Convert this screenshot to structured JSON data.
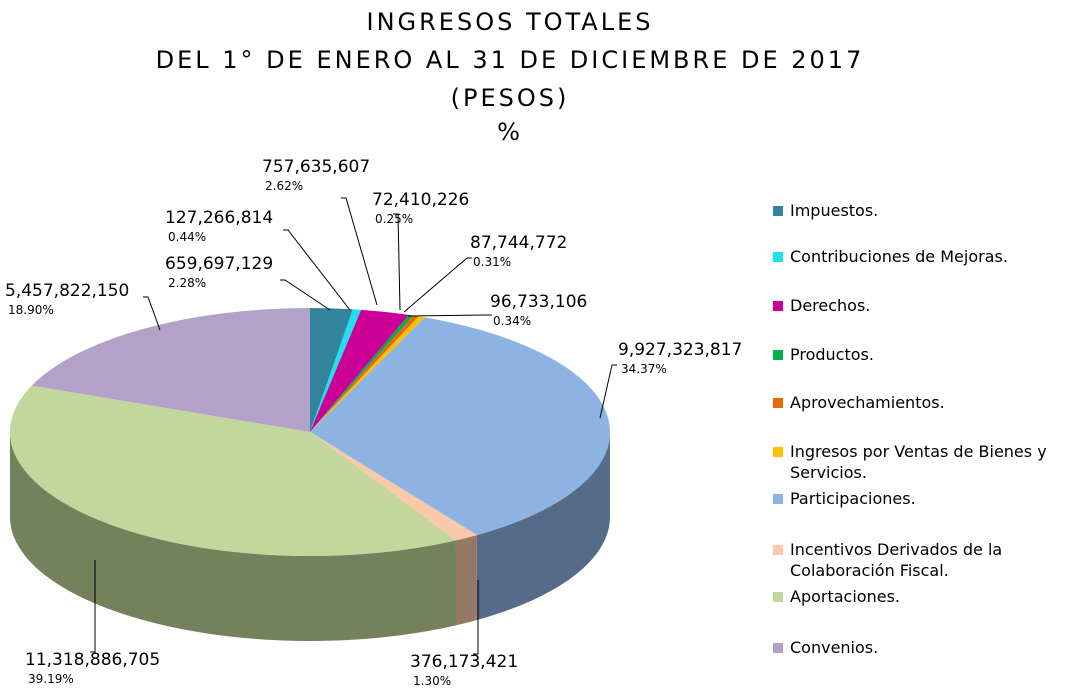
{
  "chart_data": {
    "type": "pie3d",
    "title_lines": [
      "INGRESOS TOTALES",
      "DEL 1° DE ENERO AL 31 DE DICIEMBRE DE 2017",
      "(PESOS)",
      "%"
    ],
    "categories": [
      "Impuestos.",
      "Contribuciones de Mejoras.",
      "Derechos.",
      "Productos.",
      "Aprovechamientos.",
      "Ingresos por Ventas de Bienes y Servicios.",
      "Participaciones.",
      "Incentivos Derivados de la Colaboración Fiscal.",
      "Aportaciones.",
      "Convenios."
    ],
    "values": [
      659697129,
      127266814,
      757635607,
      72410226,
      87744772,
      96733106,
      9927323817,
      376173421,
      11318886705,
      5457822150
    ],
    "value_labels": [
      "659,697,129",
      "127,266,814",
      "757,635,607",
      "72,410,226",
      "87,744,772",
      "96,733,106",
      "9,927,323,817",
      "376,173,421",
      "11,318,886,705",
      "5,457,822,150"
    ],
    "percent_labels": [
      "2.28%",
      "0.44%",
      "2.62%",
      "0.25%",
      "0.31%",
      "0.34%",
      "34.37%",
      "1.30%",
      "39.19%",
      "18.90%"
    ],
    "colors": [
      "#31849b",
      "#1fe0f0",
      "#cc0099",
      "#00b050",
      "#e36c09",
      "#ffc000",
      "#8db3e2",
      "#fac9a8",
      "#c3d69b",
      "#b3a2c7"
    ],
    "legend": "right"
  }
}
